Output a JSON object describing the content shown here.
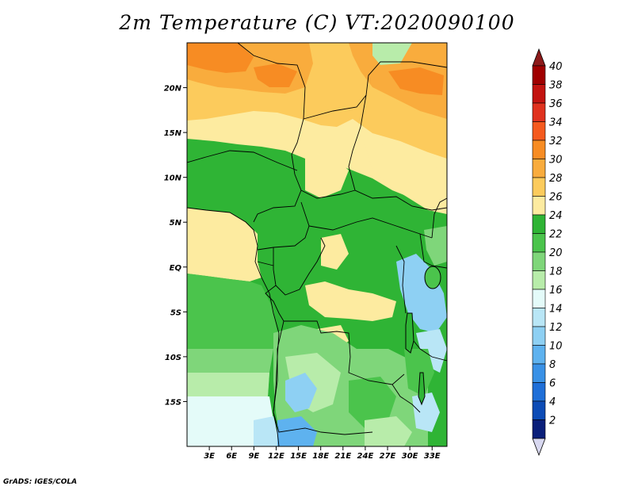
{
  "title": "2m Temperature (C) VT:2020090100",
  "credit": "GrADS: IGES/COLA",
  "map": {
    "lon_range": [
      0,
      35
    ],
    "lat_range": [
      -20,
      25
    ],
    "lon_ticks": [
      {
        "value": 3,
        "label": "3E"
      },
      {
        "value": 6,
        "label": "6E"
      },
      {
        "value": 9,
        "label": "9E"
      },
      {
        "value": 12,
        "label": "12E"
      },
      {
        "value": 15,
        "label": "15E"
      },
      {
        "value": 18,
        "label": "18E"
      },
      {
        "value": 21,
        "label": "21E"
      },
      {
        "value": 24,
        "label": "24E"
      },
      {
        "value": 27,
        "label": "27E"
      },
      {
        "value": 30,
        "label": "30E"
      },
      {
        "value": 33,
        "label": "33E"
      }
    ],
    "lat_ticks": [
      {
        "value": 20,
        "label": "20N"
      },
      {
        "value": 15,
        "label": "15N"
      },
      {
        "value": 10,
        "label": "10N"
      },
      {
        "value": 5,
        "label": "5N"
      },
      {
        "value": 0,
        "label": "EQ"
      },
      {
        "value": -5,
        "label": "5S"
      },
      {
        "value": -10,
        "label": "10S"
      },
      {
        "value": -15,
        "label": "15S"
      }
    ]
  },
  "colorbar": {
    "labels": [
      "40",
      "38",
      "36",
      "34",
      "32",
      "30",
      "28",
      "26",
      "24",
      "22",
      "20",
      "18",
      "16",
      "14",
      "12",
      "10",
      "8",
      "6",
      "4",
      "2"
    ],
    "colors": [
      "#a00000",
      "#c31410",
      "#e0321e",
      "#f55a1e",
      "#f78c23",
      "#f9ac3d",
      "#fccb5c",
      "#fdeba0",
      "#2fb435",
      "#4bc44c",
      "#7fd67a",
      "#b8ecaa",
      "#e4fbf9",
      "#b9e6f6",
      "#8ed0f3",
      "#5eb2ef",
      "#3991e6",
      "#1f6fd8",
      "#0d4cb6",
      "#0a1f7a"
    ],
    "top_arrow_color": "#8c1a1a",
    "bottom_arrow_color": "#d8d8f0"
  }
}
